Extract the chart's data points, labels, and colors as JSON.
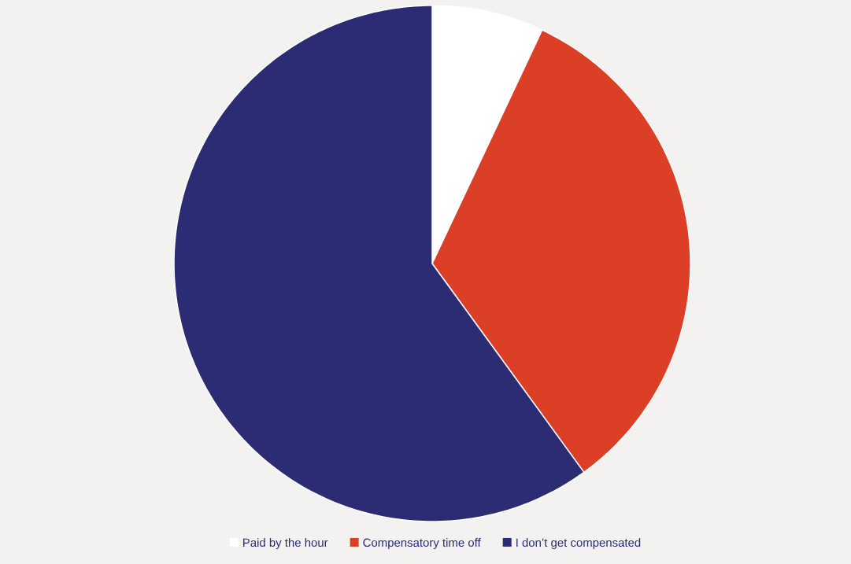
{
  "chart_data": {
    "type": "pie",
    "categories": [
      "Paid by the hour",
      "Compensatory time off",
      "I don’t get compensated"
    ],
    "values": [
      7,
      33,
      60
    ],
    "colors": [
      "#ffffff",
      "#db3f26",
      "#2c2c74"
    ],
    "legend": "bottom"
  }
}
